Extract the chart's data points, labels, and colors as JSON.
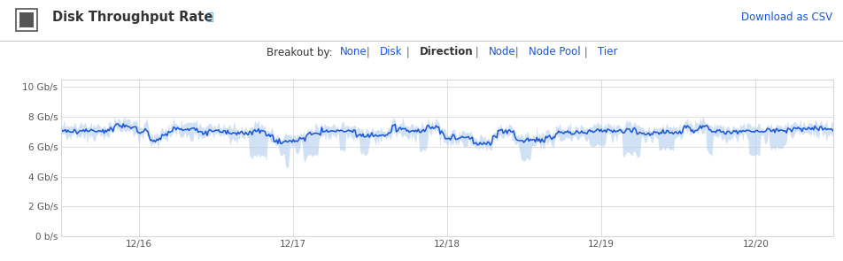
{
  "title": "Disk Throughput Rate",
  "breakout_label": "Breakout by:",
  "breakout_options": [
    "None",
    "Disk",
    "Direction",
    "Node",
    "Node Pool",
    "Tier"
  ],
  "breakout_active": "Direction",
  "download_link": "Download as CSV",
  "ytick_vals": [
    0,
    2,
    4,
    6,
    8,
    10
  ],
  "ytick_labels": [
    "0 b/s",
    "2 Gb/s",
    "4 Gb/s",
    "6 Gb/s",
    "8 Gb/s",
    "10 Gb/s"
  ],
  "xtick_labels": [
    "12/16",
    "12/17",
    "12/18",
    "12/19",
    "12/20"
  ],
  "ylim": [
    0,
    10.5
  ],
  "mean_value": 7.05,
  "line_color": "#1a56db",
  "band_color": "#b8d0f0",
  "background_color": "#ffffff",
  "grid_color": "#d8d8d8",
  "title_color": "#333333",
  "link_color": "#1a56db",
  "inactive_color": "#1a56db",
  "active_color": "#333333",
  "sep_color": "#666666",
  "n_points": 600,
  "seed": 99
}
